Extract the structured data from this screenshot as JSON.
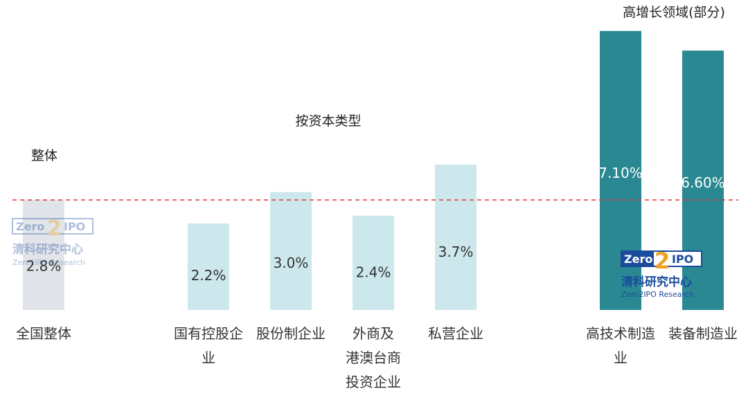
{
  "chart_data": {
    "type": "bar",
    "title": "",
    "xlabel": "",
    "ylabel": "",
    "ylim": [
      0,
      8
    ],
    "grid": false,
    "legend": "none",
    "reference_line": {
      "value": 2.8,
      "color": "#e0343c",
      "style": "dashed"
    },
    "groups": [
      {
        "name": "整体",
        "bars": [
          0
        ]
      },
      {
        "name": "按资本类型",
        "bars": [
          1,
          2,
          3,
          4
        ]
      },
      {
        "name": "高增长领域(部分)",
        "bars": [
          5,
          6
        ]
      }
    ],
    "categories": [
      [
        "全国整体"
      ],
      [
        "国有控股企",
        "业"
      ],
      [
        "股份制企业"
      ],
      [
        "外商及",
        "港澳台商",
        "投资企业"
      ],
      [
        "私营企业"
      ],
      [
        "高技术制造",
        "业"
      ],
      [
        "装备制造业"
      ]
    ],
    "values": [
      2.8,
      2.2,
      3.0,
      2.4,
      3.7,
      7.1,
      6.6
    ],
    "value_labels": [
      "2.8%",
      "2.2%",
      "3.0%",
      "2.4%",
      "3.7%",
      "7.10%",
      "6.60%"
    ],
    "colors": [
      "#e1e4e8",
      "#cce8ec",
      "#cce8ec",
      "#cce8ec",
      "#cce8ec",
      "#2a8892",
      "#2a8892"
    ],
    "label_colors": [
      "#333333",
      "#333333",
      "#333333",
      "#333333",
      "#333333",
      "#ffffff",
      "#ffffff"
    ]
  },
  "watermark": {
    "brand": "Zero",
    "brand_digit": "2",
    "brand_suffix": "IPO",
    "cn_name": "清科研究中心",
    "en_name": "Zero2IPO Research"
  }
}
